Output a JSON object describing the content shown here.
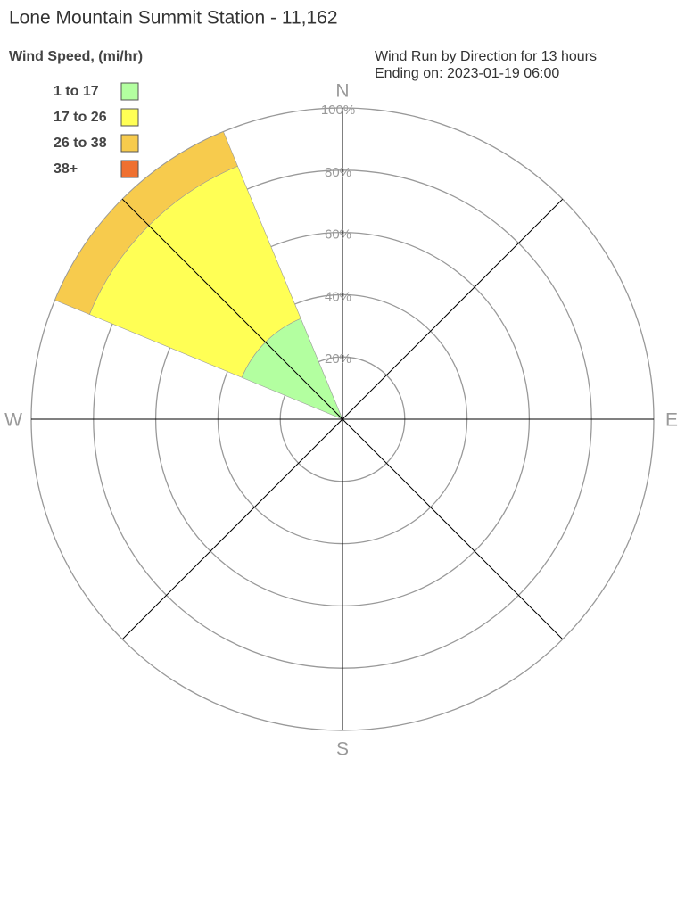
{
  "chart_data": {
    "type": "windrose",
    "title": "Lone Mountain Summit Station - 11,162",
    "legend_title": "Wind Speed, (mi/hr)",
    "subtitle": [
      "Wind Run by Direction for 13 hours",
      "Ending on: 2023-01-19 06:00"
    ],
    "categories": [
      "N",
      null,
      "E",
      null,
      "S",
      null,
      "W",
      null
    ],
    "series": [
      {
        "name": "1 to 17",
        "color": "#b3ffa0",
        "values": [
          0,
          0,
          0,
          0,
          0,
          0,
          0,
          35
        ]
      },
      {
        "name": "17 to 26",
        "color": "#ffff55",
        "values": [
          0,
          0,
          0,
          0,
          0,
          0,
          0,
          53
        ]
      },
      {
        "name": "26 to 38",
        "color": "#f7cb4d",
        "values": [
          0,
          0,
          0,
          0,
          0,
          0,
          0,
          12
        ]
      },
      {
        "name": "38+",
        "color": "#ef7030",
        "values": [
          0,
          0,
          0,
          0,
          0,
          0,
          0,
          0
        ]
      }
    ],
    "rlim": [
      0,
      100
    ],
    "rticks": [
      {
        "value": 20,
        "label": "20%"
      },
      {
        "value": 40,
        "label": "40%"
      },
      {
        "value": 60,
        "label": "60%"
      },
      {
        "value": 80,
        "label": "80%"
      },
      {
        "value": 100,
        "label": "100%"
      }
    ],
    "grid": true
  }
}
